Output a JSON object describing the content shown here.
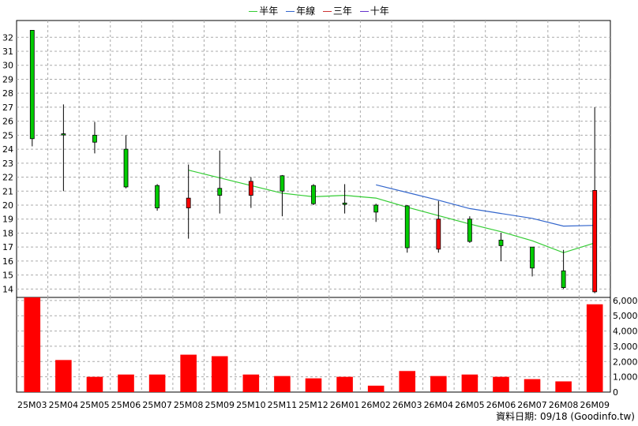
{
  "legend": [
    {
      "name": "半年",
      "color": "#33cc33"
    },
    {
      "name": "年線",
      "color": "#3366cc"
    },
    {
      "name": "三年",
      "color": "#cc3333"
    },
    {
      "name": "十年",
      "color": "#6633cc"
    }
  ],
  "footer": "資料日期: 09/18  (Goodinfo.tw)",
  "colors": {
    "up": "#ff0000",
    "down": "#00cc00",
    "grid": "#aaaaaa"
  },
  "chart_data": [
    {
      "type": "candlestick",
      "categories": [
        "25M03",
        "25M04",
        "25M05",
        "25M06",
        "25M07",
        "25M08",
        "25M09",
        "25M10",
        "25M11",
        "25M12",
        "26M01",
        "26M02",
        "26M03",
        "26M04",
        "26M05",
        "26M06",
        "26M07",
        "26M08",
        "26M09"
      ],
      "ohlc": [
        {
          "open": 24.75,
          "high": 32.5,
          "low": 24.2,
          "close": 32.5
        },
        {
          "open": 25.05,
          "high": 27.2,
          "low": 21.0,
          "close": 25.1
        },
        {
          "open": 24.5,
          "high": 25.95,
          "low": 23.7,
          "close": 25.0
        },
        {
          "open": 21.3,
          "high": 25.0,
          "low": 21.2,
          "close": 24.0
        },
        {
          "open": 19.8,
          "high": 21.5,
          "low": 19.6,
          "close": 21.4
        },
        {
          "open": 20.5,
          "high": 22.9,
          "low": 17.6,
          "close": 19.8
        },
        {
          "open": 20.7,
          "high": 23.9,
          "low": 19.4,
          "close": 21.2
        },
        {
          "open": 21.7,
          "high": 22.0,
          "low": 19.8,
          "close": 20.7
        },
        {
          "open": 21.0,
          "high": 22.15,
          "low": 19.2,
          "close": 22.1
        },
        {
          "open": 20.1,
          "high": 21.5,
          "low": 20.0,
          "close": 21.4
        },
        {
          "open": 20.05,
          "high": 21.5,
          "low": 19.4,
          "close": 20.15
        },
        {
          "open": 19.5,
          "high": 20.1,
          "low": 18.8,
          "close": 20.0
        },
        {
          "open": 16.95,
          "high": 20.0,
          "low": 16.6,
          "close": 19.95
        },
        {
          "open": 19.0,
          "high": 20.3,
          "low": 16.6,
          "close": 16.85
        },
        {
          "open": 17.4,
          "high": 19.2,
          "low": 17.3,
          "close": 19.0
        },
        {
          "open": 17.1,
          "high": 18.0,
          "low": 16.0,
          "close": 17.5
        },
        {
          "open": 15.5,
          "high": 17.0,
          "low": 14.9,
          "close": 17.0
        },
        {
          "open": 14.1,
          "high": 16.8,
          "low": 14.0,
          "close": 15.3
        },
        {
          "open": 21.05,
          "high": 27.0,
          "low": 13.7,
          "close": 13.8
        }
      ],
      "moving_averages": [
        {
          "name": "半年",
          "color": "#33cc33",
          "values": [
            null,
            null,
            null,
            null,
            null,
            22.5,
            21.95,
            21.4,
            20.85,
            20.6,
            20.7,
            20.5,
            19.85,
            19.25,
            18.65,
            18.1,
            17.45,
            16.6,
            17.3
          ]
        },
        {
          "name": "年線",
          "color": "#3366cc",
          "values": [
            null,
            null,
            null,
            null,
            null,
            null,
            null,
            null,
            null,
            null,
            null,
            21.45,
            20.9,
            20.35,
            19.75,
            19.4,
            19.05,
            18.5,
            18.55
          ]
        }
      ],
      "yticks": [
        14,
        15,
        16,
        17,
        18,
        19,
        20,
        21,
        22,
        23,
        24,
        25,
        26,
        27,
        28,
        29,
        30,
        31,
        32
      ],
      "ylim": [
        13.4,
        33.2
      ],
      "grid": true,
      "legend_position": "top"
    },
    {
      "type": "bar",
      "categories": [
        "25M03",
        "25M04",
        "25M05",
        "25M06",
        "25M07",
        "25M08",
        "25M09",
        "25M10",
        "25M11",
        "25M12",
        "26M01",
        "26M02",
        "26M03",
        "26M04",
        "26M05",
        "26M06",
        "26M07",
        "26M08",
        "26M09"
      ],
      "values": [
        6200,
        2100,
        1000,
        1150,
        1150,
        2450,
        2350,
        1150,
        1050,
        900,
        1000,
        420,
        1380,
        1050,
        1150,
        1000,
        850,
        700,
        5750
      ],
      "color": "#ff0000",
      "yticks": [
        0,
        1000,
        2000,
        3000,
        4000,
        5000,
        6000
      ],
      "yticklabels": [
        "0",
        "1,000",
        "2,000",
        "3,000",
        "4,000",
        "5,000",
        "6,000"
      ],
      "ylim": [
        0,
        6200
      ],
      "grid": true
    }
  ]
}
